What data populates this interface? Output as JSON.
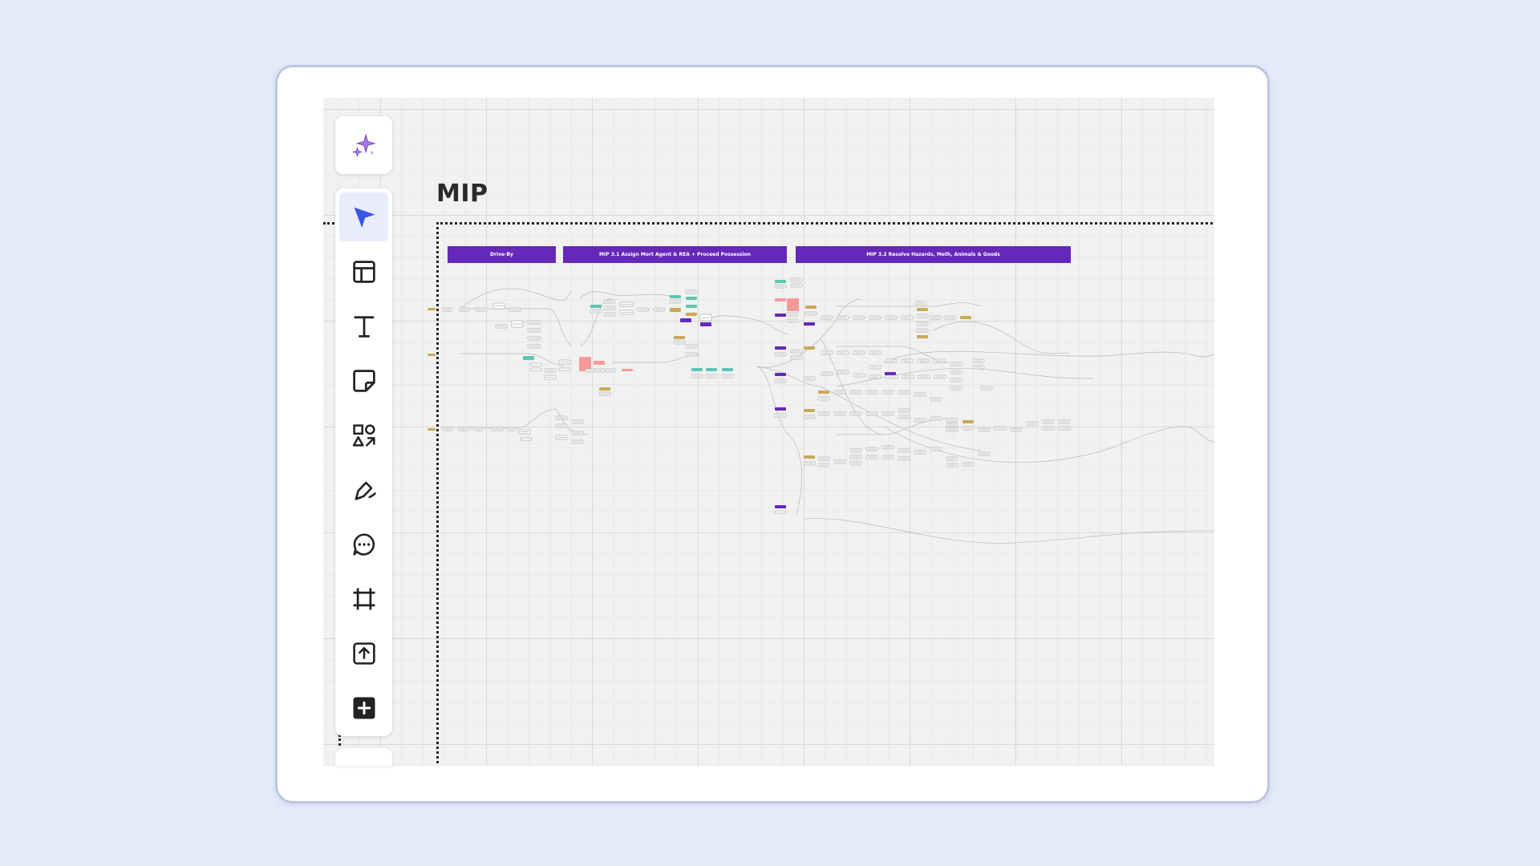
{
  "board": {
    "title": "MIP"
  },
  "sections": [
    {
      "label": "Drive-By"
    },
    {
      "label": "MIP 3.1 Assign Mort Agent & REA + Proceed Possession"
    },
    {
      "label": "MIP 3.2 Resolve Hazards, Meth, Animals & Goods"
    }
  ],
  "toolbar": {
    "ai_tool": "sparkle-icon",
    "tools": [
      {
        "name": "select",
        "icon": "cursor-arrow-icon",
        "active": true
      },
      {
        "name": "templates",
        "icon": "layout-icon",
        "active": false
      },
      {
        "name": "text",
        "icon": "text-icon",
        "active": false
      },
      {
        "name": "sticky-note",
        "icon": "sticky-note-icon",
        "active": false
      },
      {
        "name": "shapes",
        "icon": "shapes-icon",
        "active": false
      },
      {
        "name": "pen",
        "icon": "pen-icon",
        "active": false
      },
      {
        "name": "comment",
        "icon": "comment-icon",
        "active": false
      },
      {
        "name": "frame",
        "icon": "frame-icon",
        "active": false
      },
      {
        "name": "upload",
        "icon": "upload-icon",
        "active": false
      },
      {
        "name": "more-apps",
        "icon": "plus-square-icon",
        "active": false
      }
    ]
  },
  "colors": {
    "page_bg": "#e3ebfa",
    "section_header": "#6528b8",
    "active_tool_bg": "#e8ecfb",
    "active_tool": "#3b55e6",
    "ai_sparkle": "#9a6ad6",
    "node_teal": "#5cc6b5",
    "node_gold": "#c9a95a",
    "node_purple": "#6528b8",
    "node_salmon": "#f59a98",
    "node_white": "#ffffff"
  }
}
